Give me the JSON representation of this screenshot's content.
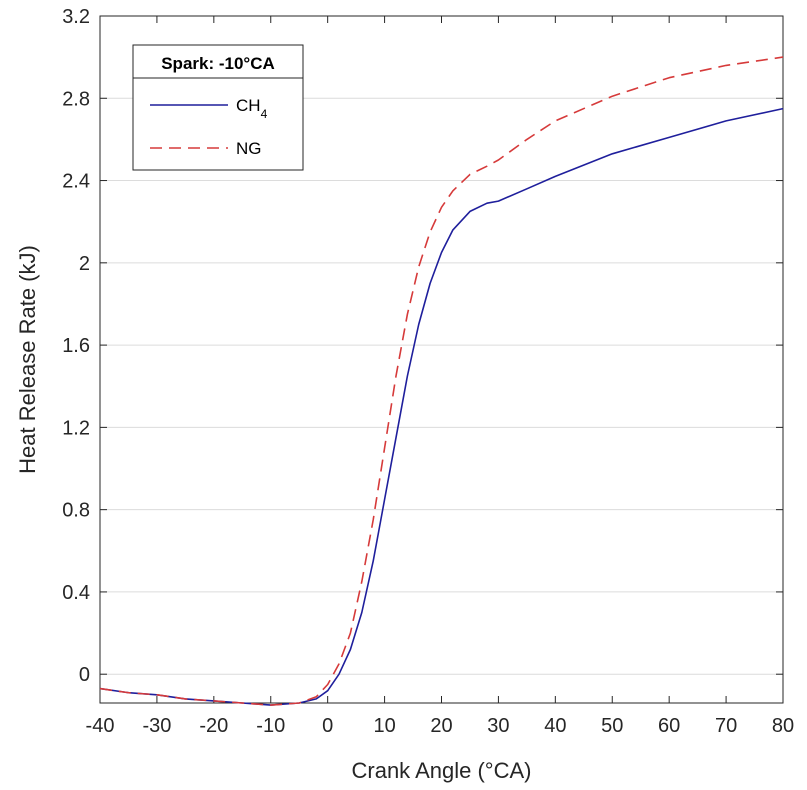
{
  "chart_data": {
    "type": "line",
    "xlabel": "Crank Angle (°CA)",
    "ylabel": "Heat Release Rate (kJ)",
    "xlim": [
      -40,
      80
    ],
    "ylim": [
      -0.14,
      3.2
    ],
    "xticks": [
      -40,
      -30,
      -20,
      -10,
      0,
      10,
      20,
      30,
      40,
      50,
      60,
      70,
      80
    ],
    "yticks": [
      0,
      0.4,
      0.8,
      1.2,
      1.6,
      2,
      2.4,
      2.8,
      3.2
    ],
    "grid": "horizontal",
    "legend": {
      "title": "Spark: -10°CA",
      "placement": "top-left"
    },
    "series": [
      {
        "name": "CH4",
        "name_main": "CH",
        "name_sub": "4",
        "color": "#1f1f9c",
        "style": "solid",
        "x": [
          -40,
          -35,
          -30,
          -25,
          -20,
          -15,
          -10,
          -5,
          -2,
          0,
          2,
          4,
          6,
          8,
          10,
          12,
          14,
          16,
          18,
          20,
          22,
          25,
          28,
          30,
          35,
          40,
          50,
          60,
          70,
          80
        ],
        "y": [
          -0.07,
          -0.09,
          -0.1,
          -0.12,
          -0.13,
          -0.14,
          -0.15,
          -0.14,
          -0.12,
          -0.08,
          0.0,
          0.12,
          0.3,
          0.55,
          0.85,
          1.15,
          1.45,
          1.7,
          1.9,
          2.05,
          2.16,
          2.25,
          2.29,
          2.3,
          2.36,
          2.42,
          2.53,
          2.61,
          2.69,
          2.75
        ]
      },
      {
        "name": "NG",
        "color": "#d63a3a",
        "style": "dashed",
        "x": [
          -40,
          -35,
          -30,
          -25,
          -20,
          -15,
          -10,
          -5,
          -2,
          0,
          2,
          4,
          6,
          8,
          10,
          12,
          14,
          16,
          18,
          20,
          22,
          25,
          28,
          30,
          35,
          40,
          50,
          60,
          70,
          80
        ],
        "y": [
          -0.07,
          -0.09,
          -0.1,
          -0.12,
          -0.13,
          -0.14,
          -0.15,
          -0.14,
          -0.11,
          -0.05,
          0.05,
          0.2,
          0.45,
          0.75,
          1.1,
          1.45,
          1.75,
          1.98,
          2.15,
          2.27,
          2.35,
          2.43,
          2.47,
          2.5,
          2.6,
          2.69,
          2.81,
          2.9,
          2.96,
          3.0
        ]
      }
    ]
  }
}
